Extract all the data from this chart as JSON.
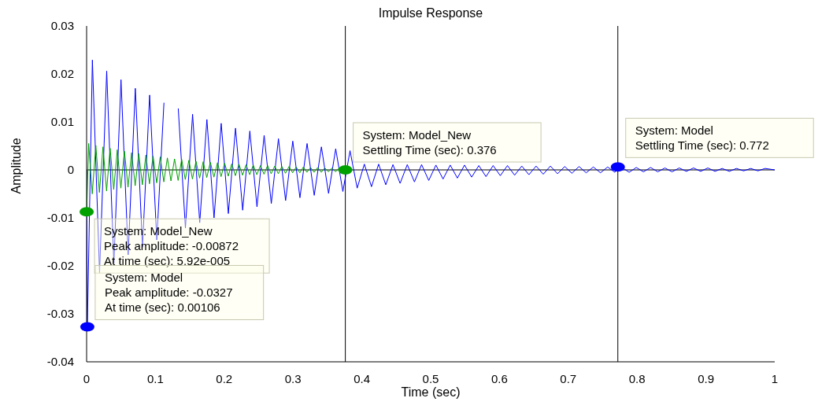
{
  "chart_data": {
    "type": "line",
    "title": "Impulse Response",
    "xlabel": "Time (sec)",
    "ylabel": "Amplitude",
    "xlim": [
      0,
      1
    ],
    "xticks": [
      0,
      0.1,
      0.2,
      0.3,
      0.4,
      0.5,
      0.6,
      0.7,
      0.8,
      0.9,
      1
    ],
    "ylim": [
      -0.04,
      0.03
    ],
    "yticks": [
      -0.04,
      -0.03,
      -0.02,
      -0.01,
      0,
      0.01,
      0.02,
      0.03
    ],
    "grid": false,
    "line_style": "solid",
    "series": [
      {
        "color": "#0000ff",
        "x": [
          0,
          0.00106,
          0.0084,
          0.0188,
          0.0292,
          0.0396,
          0.05,
          0.0604,
          0.0708,
          0.0812,
          0.0916,
          0.102,
          0.1124,
          0.1228,
          0.1332,
          0.1436,
          0.154,
          0.1644,
          0.1748,
          0.1852,
          0.1956,
          0.206,
          0.2164,
          0.2268,
          0.2372,
          0.2476,
          0.258,
          0.2684,
          0.2788,
          0.2892,
          0.2996,
          0.31,
          0.3204,
          0.3308,
          0.3412,
          0.3516,
          0.362,
          0.3724,
          0.3828,
          0.3932,
          0.4036,
          0.414,
          0.4244,
          0.4348,
          0.4452,
          0.4556,
          0.466,
          0.4764,
          0.4868,
          0.4972,
          0.5076,
          0.518,
          0.5284,
          0.5388,
          0.5492,
          0.5596,
          0.57,
          0.5804,
          0.5908,
          0.6012,
          0.6116,
          0.622,
          0.6324,
          0.6428,
          0.6532,
          0.6636,
          0.674,
          0.6844,
          0.6948,
          0.7052,
          0.7156,
          0.726,
          0.7364,
          0.7468,
          0.7572,
          0.7676,
          0.772,
          0.778,
          0.7884,
          0.7988,
          0.8092,
          0.8196,
          0.83,
          0.8404,
          0.8508,
          0.8612,
          0.8716,
          0.882,
          0.8924,
          0.9028,
          0.9132,
          0.9236,
          0.934,
          0.9444,
          0.9548,
          0.9652,
          0.9756,
          0.986,
          1
        ],
        "values": [
          0,
          -0.0327,
          0.0229,
          -0.0215,
          0.0206,
          -0.0195,
          0.0188,
          -0.0177,
          0.017,
          -0.0161,
          0.0156,
          -0.0146,
          0.014,
          null,
          0.0128,
          -0.0121,
          0.0116,
          -0.011,
          0.0105,
          -0.01,
          0.0097,
          -0.0091,
          0.0087,
          -0.0084,
          0.0081,
          -0.0077,
          0.0072,
          -0.007,
          0.0065,
          -0.0064,
          0.006,
          -0.0058,
          0.0055,
          -0.0053,
          0.0048,
          -0.0049,
          0.0044,
          -0.0045,
          0.004,
          -0.0038,
          0.0012,
          -0.0035,
          0.0012,
          -0.0031,
          0.0011,
          -0.0028,
          0.0011,
          -0.0025,
          0.0011,
          -0.0022,
          0.001,
          -0.0019,
          0.001,
          -0.0017,
          0.001,
          -0.0015,
          0.0009,
          -0.0014,
          0.0009,
          -0.0012,
          0.0009,
          -0.0011,
          0.0008,
          -0.001,
          0.0008,
          -0.0009,
          0.0008,
          -0.0008,
          0.0007,
          -0.0007,
          0.0007,
          -0.0006,
          0.0006,
          -0.0006,
          0.0006,
          -0.0005,
          0.0006,
          0.0005,
          -0.0005,
          0.0005,
          -0.0004,
          0.0005,
          -0.0004,
          0.0004,
          -0.0004,
          0.0004,
          -0.0003,
          0.0004,
          -0.0003,
          0.0004,
          -0.0003,
          0.0003,
          -0.0003,
          0.0003,
          -0.0002,
          0.0003,
          -0.0002,
          0.0003,
          0
        ]
      },
      {
        "color": "#00a000",
        "x": [
          0,
          5.92e-05,
          0.003,
          0.0082,
          0.0134,
          0.0186,
          0.0238,
          0.029,
          0.0342,
          0.0394,
          0.0446,
          0.0498,
          0.055,
          0.0602,
          0.0654,
          0.0706,
          0.0758,
          0.081,
          0.0862,
          0.0914,
          0.0966,
          0.1018,
          0.107,
          0.1122,
          0.1174,
          0.1226,
          0.1278,
          0.133,
          0.1382,
          0.1434,
          0.1486,
          0.1538,
          0.159,
          0.1642,
          0.1694,
          0.1746,
          0.1798,
          0.185,
          0.1902,
          0.1954,
          0.2006,
          0.2058,
          0.211,
          0.2162,
          0.2214,
          0.2266,
          0.2318,
          0.237,
          0.2422,
          0.2474,
          0.2526,
          0.2578,
          0.263,
          0.2682,
          0.2734,
          0.2786,
          0.2838,
          0.289,
          0.2942,
          0.2994,
          0.3046,
          0.3098,
          0.315,
          0.3202,
          0.3254,
          0.3306,
          0.3358,
          0.341,
          0.3462,
          0.3514,
          0.3566,
          0.3618,
          0.367,
          0.3722,
          0.376
        ],
        "values": [
          0,
          -0.00872,
          0.0055,
          -0.005,
          0.0051,
          -0.0047,
          0.0048,
          -0.0044,
          0.0045,
          -0.0041,
          0.0042,
          -0.0038,
          0.0039,
          -0.0036,
          0.0036,
          -0.0033,
          0.0034,
          -0.0031,
          0.0031,
          -0.0029,
          0.0029,
          -0.0027,
          0.0027,
          -0.0025,
          0.0025,
          -0.0023,
          0.0023,
          -0.0022,
          0.0022,
          -0.002,
          0.002,
          -0.0019,
          0.0018,
          -0.0017,
          0.0017,
          -0.0016,
          0.0016,
          -0.0015,
          0.0015,
          -0.0014,
          0.0014,
          -0.0013,
          0.0013,
          -0.0012,
          0.0012,
          -0.0011,
          0.0011,
          -0.001,
          0.001,
          -0.001,
          0.0009,
          -0.0009,
          0.0009,
          -0.0008,
          0.0008,
          -0.0008,
          0.0007,
          -0.0007,
          0.0007,
          -0.0006,
          0.0006,
          -0.0006,
          0.0006,
          -0.0005,
          0.0005,
          -0.0005,
          0.0005,
          -0.0005,
          0.0004,
          -0.0004,
          0.0004,
          -0.0004,
          0.0004,
          -0.0004,
          0
        ]
      }
    ],
    "ref_lines": [
      {
        "axis": "y",
        "value": 0,
        "color": "#000000"
      },
      {
        "axis": "x",
        "value": 0.376,
        "color": "#000000"
      },
      {
        "axis": "x",
        "value": 0.772,
        "color": "#000000"
      }
    ],
    "annotations": [
      {
        "text": "System: Model_New\nPeak amplitude: -0.00872\nAt time (sec): 5.92e-005",
        "x": 5.92e-05,
        "y": -0.00872
      },
      {
        "text": "System: Model\nPeak amplitude: -0.0327\nAt time (sec): 0.00106",
        "x": 0.00106,
        "y": -0.0327
      },
      {
        "text": "System: Model_New\nSettling Time (sec): 0.376",
        "x": 0.376,
        "y": 0
      },
      {
        "text": "System: Model\nSettling Time (sec): 0.772",
        "x": 0.772,
        "y": 0.0006
      }
    ]
  }
}
